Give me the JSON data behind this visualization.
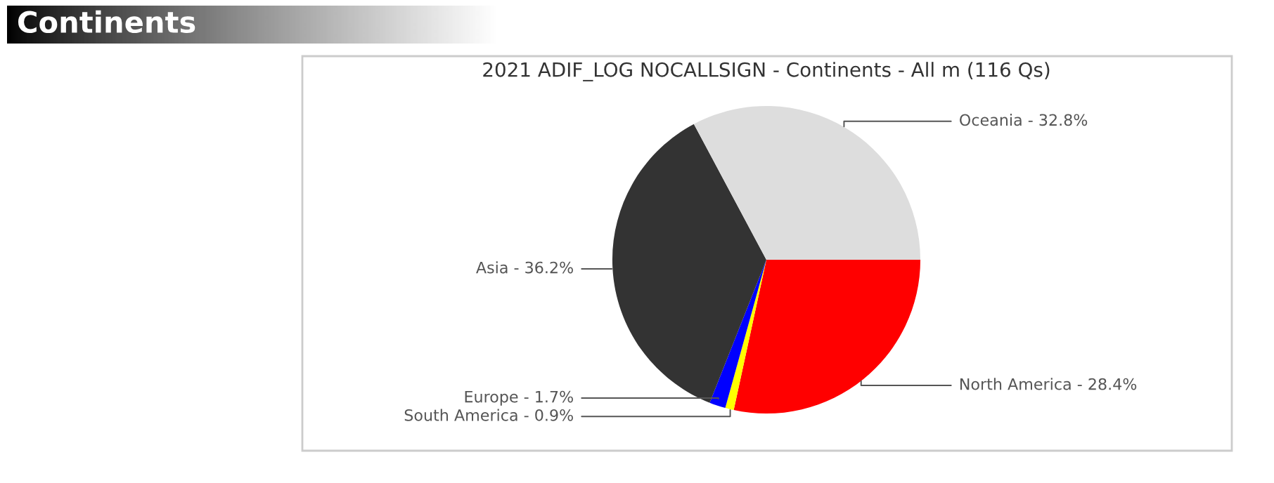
{
  "chart_data": {
    "type": "pie",
    "title": "Continents",
    "subtitle": "2021 ADIF_LOG NOCALLSIGN - Continents - All m (116 Qs)",
    "categories": [
      "North America - 28.4%",
      "South America - 0.9%",
      "Europe - 1.7%",
      "Asia - 36.2%",
      "Oceania - 32.8%"
    ],
    "values": [
      28.4,
      0.9,
      1.7,
      36.2,
      32.8
    ],
    "colors": [
      "#ff0000",
      "#ffff00",
      "#0000ff",
      "#333333",
      "#dddddd"
    ],
    "legend": false
  }
}
